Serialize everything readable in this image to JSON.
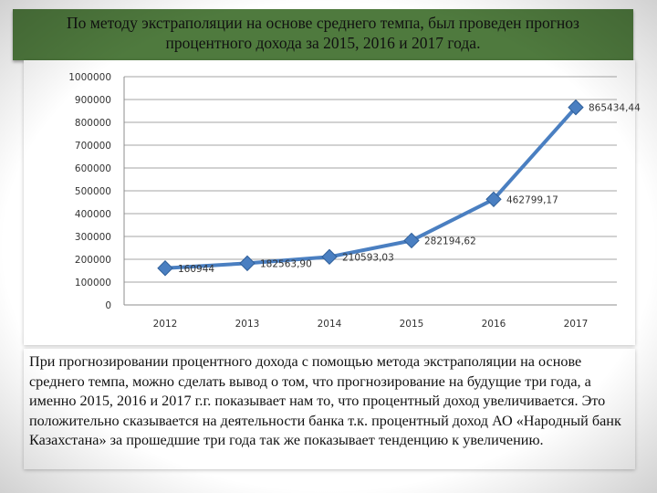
{
  "header": {
    "title_line1": "По методу экстраполяции на основе среднего темпа, был проведен прогноз",
    "title_line2": "процентного дохода за 2015, 2016  и 2017 года."
  },
  "chart_data": {
    "type": "line",
    "title": "",
    "xlabel": "",
    "ylabel": "",
    "categories": [
      "2012",
      "2013",
      "2014",
      "2015",
      "2016",
      "2017"
    ],
    "ylim": [
      0,
      1000000
    ],
    "yticks": [
      0,
      100000,
      200000,
      300000,
      400000,
      500000,
      600000,
      700000,
      800000,
      900000,
      1000000
    ],
    "ytick_labels": [
      "0",
      "100000",
      "200000",
      "300000",
      "400000",
      "500000",
      "600000",
      "700000",
      "800000",
      "900000",
      "1000000"
    ],
    "grid": true,
    "legend": "none",
    "series": [
      {
        "values": [
          160944,
          182563.9,
          210593.03,
          282194.62,
          462799.17,
          865434.44
        ],
        "labels": [
          "160944",
          "182563,90",
          "210593,03",
          "282194,62",
          "462799,17",
          "865434,44"
        ],
        "color": "#4a7fc1"
      }
    ]
  },
  "body": {
    "paragraph": "При прогнозировании процентного дохода с помощью метода экстраполяции на основе среднего темпа, можно сделать вывод о том, что прогнозирование на будущие три года, а именно 2015, 2016 и 2017 г.г. показывает нам то, что процентный доход увеличивается. Это положительно сказывается на деятельности банка т.к. процентный доход АО «Народный банк Казахстана» за прошедшие три года так же показывает тенденцию к увеличению."
  }
}
